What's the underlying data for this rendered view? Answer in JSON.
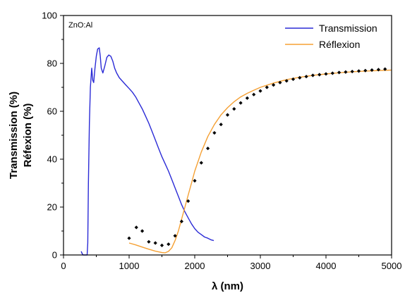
{
  "chart_data": {
    "type": "line",
    "annotation": "ZnO:Al",
    "xlabel": "λ (nm)",
    "ylabel_lines": [
      "Transmission (%)",
      "Réfexion (%)"
    ],
    "xlim": [
      0,
      5000
    ],
    "ylim": [
      0,
      100
    ],
    "xticks": [
      0,
      1000,
      2000,
      3000,
      4000,
      5000
    ],
    "yticks": [
      0,
      20,
      40,
      60,
      80,
      100
    ],
    "grid": false,
    "legend_position": "top-right",
    "series": [
      {
        "name": "Transmission",
        "color": "#2b2bd6",
        "style": "line",
        "x": [
          270,
          285,
          300,
          330,
          350,
          360,
          370,
          380,
          395,
          410,
          430,
          445,
          460,
          480,
          500,
          520,
          545,
          560,
          575,
          600,
          630,
          660,
          690,
          720,
          750,
          780,
          810,
          850,
          900,
          950,
          1000,
          1050,
          1100,
          1150,
          1200,
          1250,
          1300,
          1350,
          1400,
          1450,
          1500,
          1550,
          1600,
          1650,
          1700,
          1750,
          1800,
          1850,
          1900,
          1950,
          2000,
          2050,
          2100,
          2150,
          2200,
          2250,
          2290
        ],
        "y": [
          1.5,
          0.5,
          0,
          0,
          0,
          0,
          5,
          30,
          55,
          70,
          78,
          73,
          72,
          78,
          83,
          86,
          86.5,
          83,
          78,
          76,
          79,
          82.5,
          83.5,
          83,
          81,
          78,
          76,
          74,
          72.5,
          71,
          69.5,
          68,
          66,
          63.5,
          61,
          58,
          55,
          51.5,
          48,
          44.5,
          41,
          38,
          35,
          31.5,
          28,
          24.5,
          21,
          18,
          15.5,
          13,
          11,
          9.5,
          8.5,
          7.5,
          7,
          6.3,
          6
        ]
      },
      {
        "name": "Réflexion",
        "color": "#f5a033",
        "style": "line",
        "x": [
          1000,
          1100,
          1200,
          1300,
          1400,
          1500,
          1550,
          1600,
          1650,
          1700,
          1750,
          1800,
          1850,
          1900,
          1950,
          2000,
          2100,
          2200,
          2300,
          2400,
          2500,
          2600,
          2700,
          2800,
          2900,
          3000,
          3200,
          3400,
          3600,
          3800,
          4000,
          4200,
          4400,
          4600,
          4800,
          5000
        ],
        "y": [
          5,
          4.2,
          3.3,
          2.4,
          1.6,
          1,
          0.9,
          1.5,
          3,
          6,
          10,
          15,
          20,
          25,
          30,
          35,
          43,
          49.5,
          54.5,
          58.5,
          61.5,
          64,
          66,
          67.5,
          68.8,
          70,
          71.8,
          73.2,
          74.2,
          75,
          75.6,
          76.1,
          76.5,
          76.8,
          77,
          77.2
        ]
      },
      {
        "name": "",
        "color": "#000000",
        "style": "markers",
        "x": [
          1000,
          1110,
          1200,
          1300,
          1400,
          1500,
          1600,
          1700,
          1800,
          1900,
          2000,
          2100,
          2200,
          2300,
          2400,
          2500,
          2600,
          2700,
          2800,
          2900,
          3000,
          3100,
          3200,
          3300,
          3400,
          3500,
          3600,
          3700,
          3800,
          3900,
          4000,
          4100,
          4200,
          4300,
          4400,
          4500,
          4600,
          4700,
          4800,
          4900
        ],
        "y": [
          7,
          11.5,
          10,
          5.5,
          5,
          4,
          4.5,
          8,
          14,
          22.5,
          31,
          38.5,
          44.5,
          51,
          54.5,
          58.5,
          61,
          63.5,
          65.5,
          67,
          68.5,
          70,
          71,
          72,
          72.7,
          73.4,
          74,
          74.5,
          75,
          75.3,
          75.6,
          75.9,
          76.2,
          76.4,
          76.6,
          76.8,
          77,
          77.2,
          77.4,
          77.6
        ]
      }
    ]
  }
}
